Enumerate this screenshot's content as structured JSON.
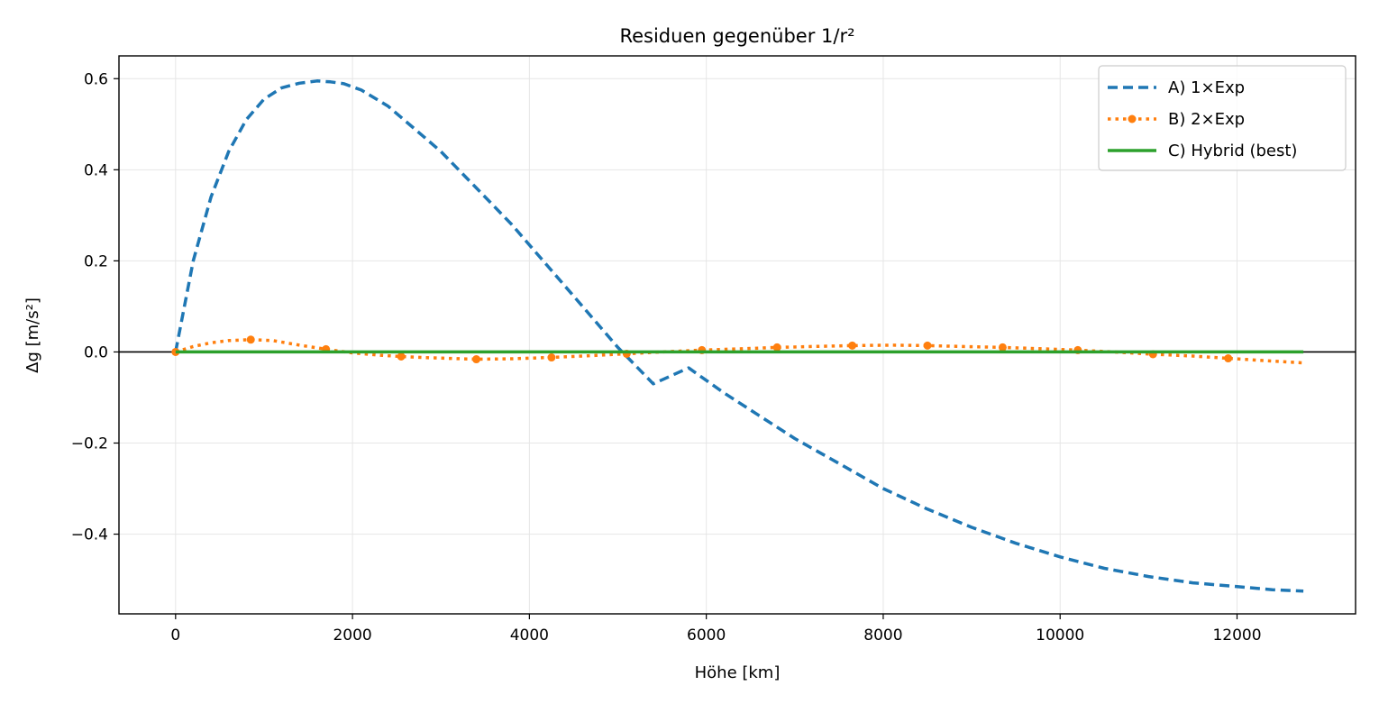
{
  "chart_data": {
    "type": "line",
    "title": "Residuen gegenüber 1/r²",
    "xlabel": "Höhe [km]",
    "ylabel": "Δg [m/s²]",
    "xlim": [
      -640,
      13340
    ],
    "ylim": [
      -0.575,
      0.65
    ],
    "xticks": [
      0,
      2000,
      4000,
      6000,
      8000,
      10000,
      12000
    ],
    "xtick_labels": [
      "0",
      "2000",
      "4000",
      "6000",
      "8000",
      "10000",
      "12000"
    ],
    "yticks": [
      -0.4,
      -0.2,
      0.0,
      0.2,
      0.4,
      0.6
    ],
    "ytick_labels": [
      "−0.4",
      "−0.2",
      "0.0",
      "0.2",
      "0.4",
      "0.6"
    ],
    "grid": true,
    "zero_line": true,
    "legend_position": "top-right",
    "series": [
      {
        "name": "A) 1×Exp",
        "color": "#1f77b4",
        "style": "dashed",
        "marker": "none",
        "x": [
          0,
          200,
          400,
          600,
          800,
          1000,
          1200,
          1400,
          1600,
          1750,
          1900,
          2100,
          2400,
          2700,
          3000,
          3400,
          3800,
          4200,
          4600,
          5000,
          5400,
          5800,
          6200,
          6600,
          7000,
          7500,
          8000,
          8500,
          9000,
          9500,
          10000,
          10500,
          11000,
          11500,
          12000,
          12400,
          12750
        ],
        "y": [
          0.0,
          0.2,
          0.34,
          0.44,
          0.51,
          0.555,
          0.58,
          0.59,
          0.595,
          0.593,
          0.589,
          0.575,
          0.54,
          0.49,
          0.44,
          0.36,
          0.28,
          0.19,
          0.1,
          0.01,
          -0.07,
          -0.035,
          -0.09,
          -0.14,
          -0.19,
          -0.245,
          -0.3,
          -0.345,
          -0.385,
          -0.42,
          -0.45,
          -0.475,
          -0.493,
          -0.507,
          -0.515,
          -0.522,
          -0.525
        ]
      },
      {
        "name": "B) 2×Exp",
        "color": "#ff7f0e",
        "style": "dotted",
        "marker": "circle",
        "x": [
          0,
          200,
          400,
          600,
          850,
          1100,
          1400,
          1700,
          2000,
          2300,
          2550,
          2900,
          3400,
          3800,
          4250,
          4700,
          5100,
          5500,
          5950,
          6400,
          6800,
          7200,
          7650,
          8100,
          8500,
          8900,
          9350,
          9800,
          10200,
          10600,
          11050,
          11500,
          11900,
          12300,
          12750
        ],
        "y": [
          0.0,
          0.012,
          0.02,
          0.025,
          0.027,
          0.025,
          0.015,
          0.006,
          -0.002,
          -0.007,
          -0.01,
          -0.013,
          -0.016,
          -0.015,
          -0.012,
          -0.008,
          -0.004,
          0.0,
          0.004,
          0.007,
          0.01,
          0.012,
          0.014,
          0.015,
          0.014,
          0.012,
          0.01,
          0.007,
          0.004,
          0.0,
          -0.005,
          -0.009,
          -0.014,
          -0.019,
          -0.024
        ],
        "marker_x": [
          0,
          850,
          1700,
          2550,
          3400,
          4250,
          5100,
          5950,
          6800,
          7650,
          8500,
          9350,
          10200,
          11050,
          11900
        ],
        "marker_y": [
          0.0,
          0.027,
          0.006,
          -0.01,
          -0.016,
          -0.012,
          -0.004,
          0.004,
          0.01,
          0.014,
          0.014,
          0.01,
          0.004,
          -0.005,
          -0.014
        ]
      },
      {
        "name": "C) Hybrid (best)",
        "color": "#2ca02c",
        "style": "solid",
        "marker": "none",
        "x": [
          0,
          12750
        ],
        "y": [
          0.0,
          0.0
        ]
      }
    ]
  }
}
